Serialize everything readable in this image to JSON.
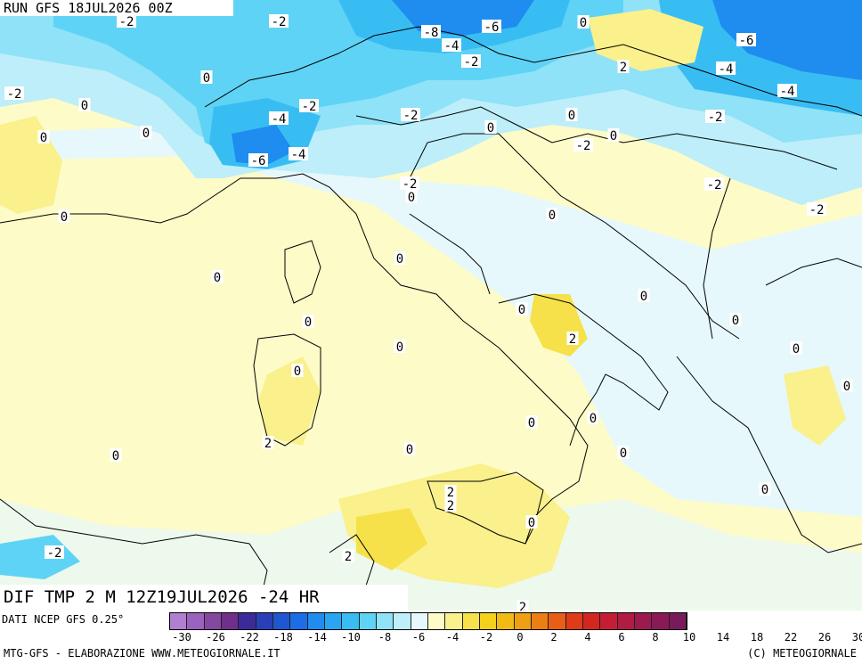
{
  "header": {
    "run_label": "RUN GFS 18JUL2026 00Z"
  },
  "title": {
    "text": "DIF TMP 2 M 12Z19JUL2026 -24 HR"
  },
  "source": {
    "text": "DATI NCEP GFS 0.25°"
  },
  "credits": {
    "left": "MTG-GFS - ELABORAZIONE WWW.METEOGIORNALE.IT",
    "right": "(C) METEOGIORNALE"
  },
  "legend": {
    "colors": [
      "#b07fd0",
      "#9a63c0",
      "#85489f",
      "#6f2f8a",
      "#3b2b9a",
      "#2a3fb5",
      "#1f56d1",
      "#1b6ee6",
      "#1f8cf0",
      "#29a6f2",
      "#38bdf3",
      "#5fd3f5",
      "#8fe2f7",
      "#bdeef9",
      "#e6f8fb",
      "#fdfbc8",
      "#faf08c",
      "#f6e14a",
      "#f3d11c",
      "#f0bc14",
      "#ee9f12",
      "#ec7f14",
      "#e85e16",
      "#e03b18",
      "#d42520",
      "#c51e34",
      "#b01c44",
      "#9c1a4e",
      "#8a1a55",
      "#7a1a5a"
    ],
    "ticks": [
      "-30",
      "-26",
      "-22",
      "-18",
      "-14",
      "-10",
      "-8",
      "-6",
      "-4",
      "-2",
      "0",
      "2",
      "4",
      "6",
      "8",
      "10",
      "14",
      "18",
      "22",
      "26",
      "30"
    ]
  },
  "map_labels": [
    {
      "t": "-2"
    },
    {
      "t": "-2"
    },
    {
      "t": "-8"
    },
    {
      "t": "-6"
    },
    {
      "t": "-4"
    },
    {
      "t": "0"
    },
    {
      "t": "-6"
    },
    {
      "t": "-4"
    },
    {
      "t": "-2"
    },
    {
      "t": "2"
    },
    {
      "t": "-4"
    },
    {
      "t": "-2"
    },
    {
      "t": "0"
    },
    {
      "t": "0"
    },
    {
      "t": "-2"
    },
    {
      "t": "-4"
    },
    {
      "t": "-2"
    },
    {
      "t": "0"
    },
    {
      "t": "-2"
    },
    {
      "t": "0"
    },
    {
      "t": "-2"
    },
    {
      "t": "0"
    },
    {
      "t": "-6"
    },
    {
      "t": "-4"
    },
    {
      "t": "0"
    },
    {
      "t": "-2"
    },
    {
      "t": "-2"
    },
    {
      "t": "0"
    },
    {
      "t": "0"
    },
    {
      "t": "0"
    },
    {
      "t": "-2"
    },
    {
      "t": "0"
    },
    {
      "t": "0"
    },
    {
      "t": "0"
    },
    {
      "t": "0"
    },
    {
      "t": "0"
    },
    {
      "t": "2"
    },
    {
      "t": "0"
    },
    {
      "t": "0"
    },
    {
      "t": "0"
    },
    {
      "t": "0"
    },
    {
      "t": "0"
    },
    {
      "t": "2"
    },
    {
      "t": "0"
    },
    {
      "t": "0"
    },
    {
      "t": "0"
    },
    {
      "t": "2"
    },
    {
      "t": "2"
    },
    {
      "t": "0"
    },
    {
      "t": "0"
    },
    {
      "t": "-2"
    },
    {
      "t": "2"
    },
    {
      "t": "0"
    },
    {
      "t": "0"
    },
    {
      "t": "2"
    },
    {
      "t": "0"
    }
  ]
}
